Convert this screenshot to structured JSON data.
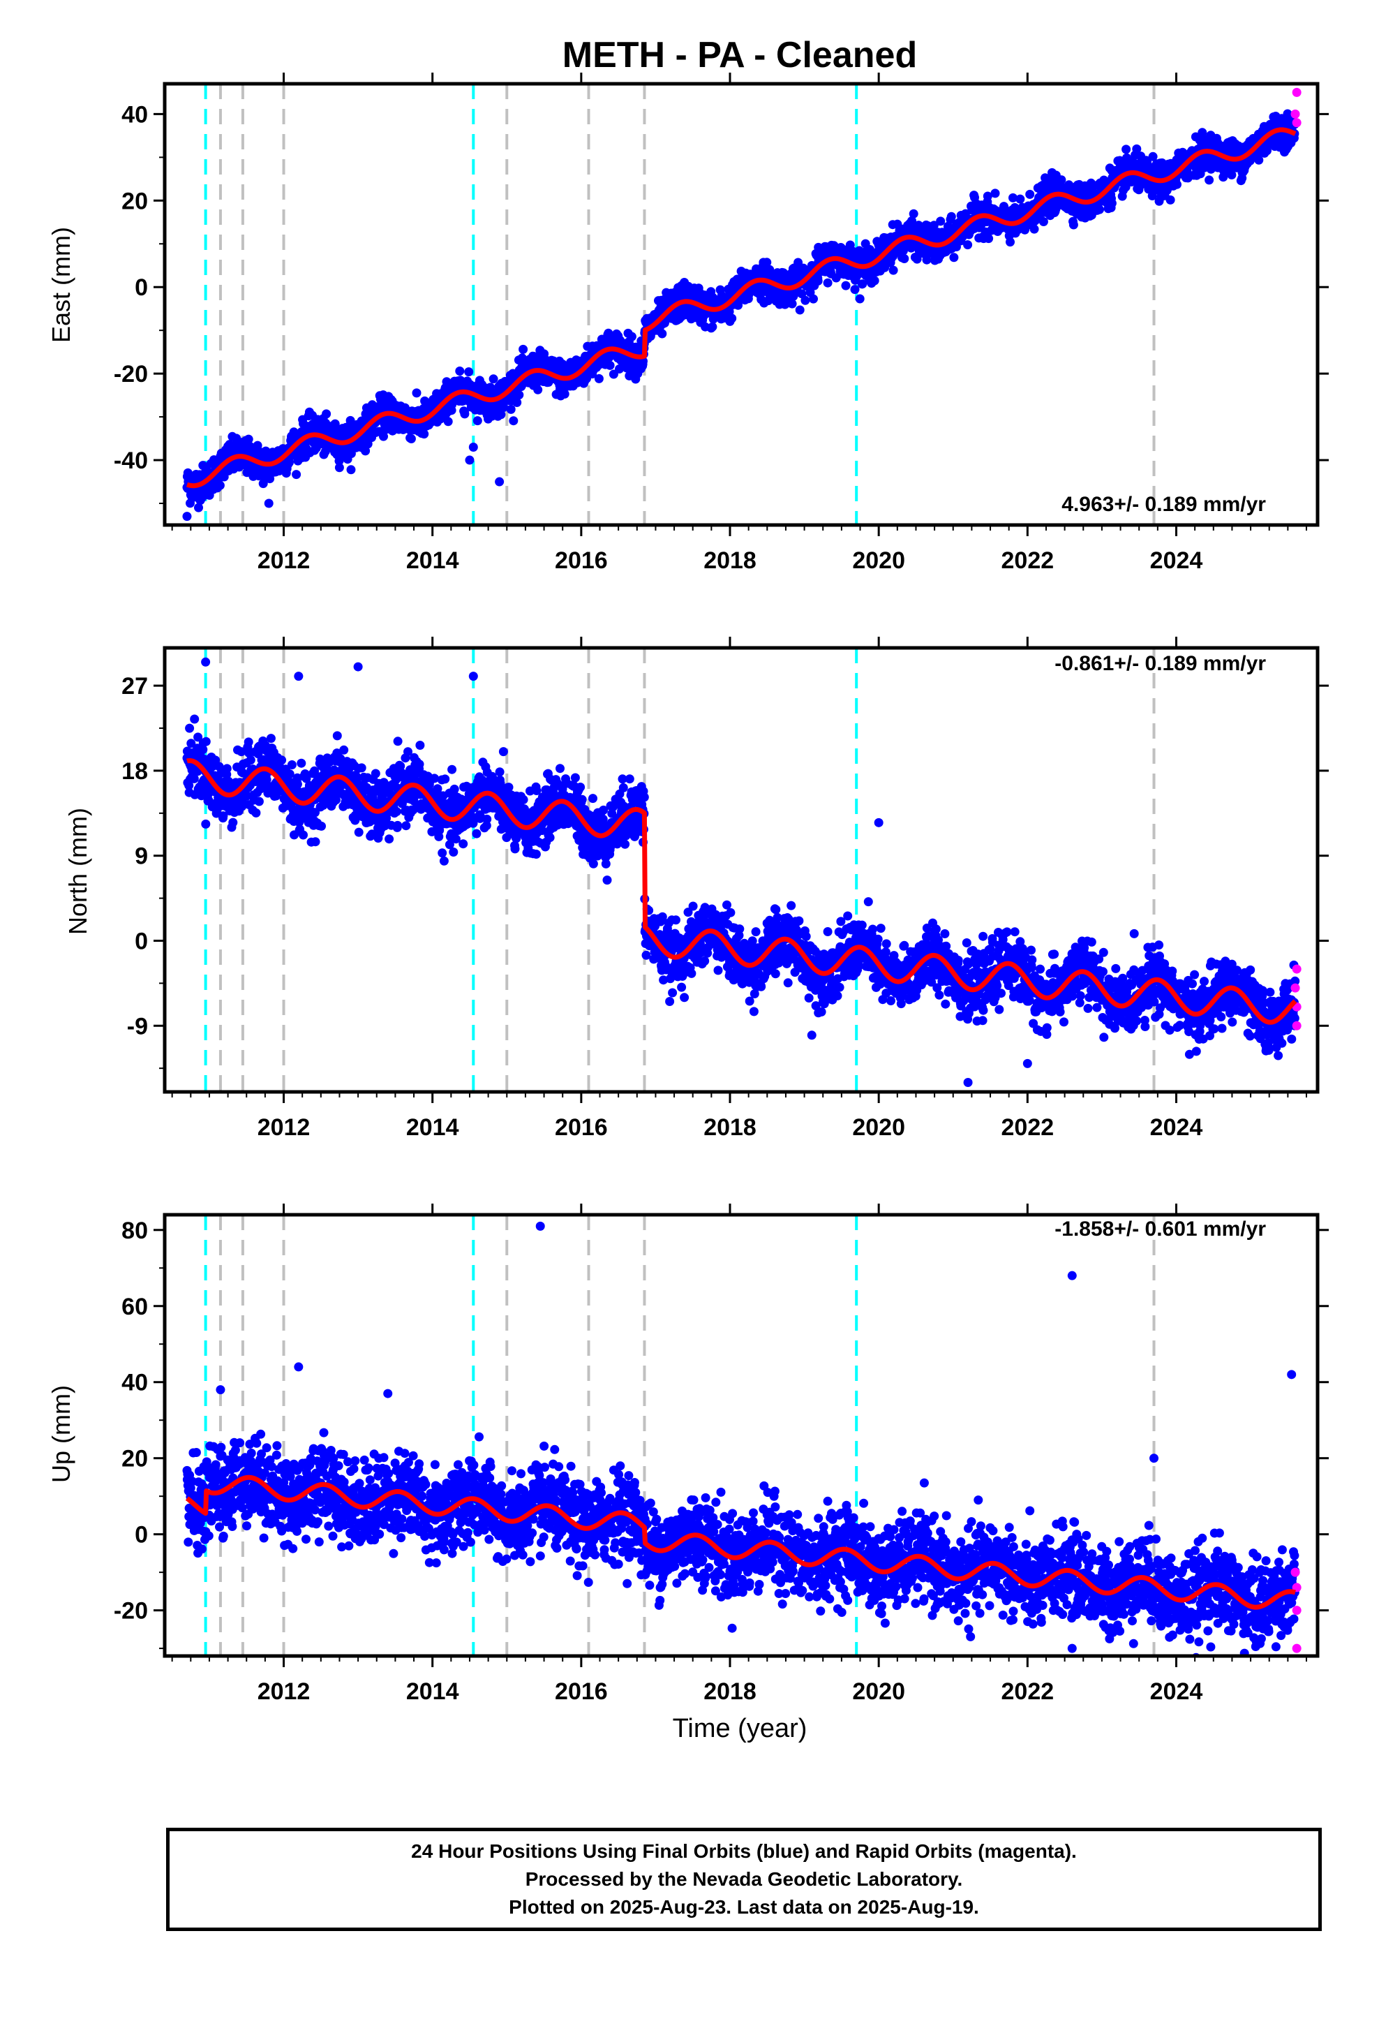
{
  "figure": {
    "title": "METH  - PA - Cleaned",
    "xlabel": "Time (year)",
    "caption": [
      "24 Hour Positions Using Final Orbits (blue) and Rapid Orbits (magenta).",
      "Processed by the Nevada Geodetic Laboratory.",
      "Plotted on 2025-Aug-23. Last data on 2025-Aug-19."
    ],
    "colors": {
      "final_orbits": "#0000ff",
      "rapid_orbits": "#ff00ff",
      "model": "#ff0000",
      "equipment_change": "#00ffff",
      "earthquake": "#c0c0c0"
    }
  },
  "chart_data": [
    {
      "type": "scatter",
      "ylabel": "East (mm)",
      "rate_label": "4.963+/- 0.189 mm/yr",
      "xlim": [
        2010.4,
        2025.9
      ],
      "ylim": [
        -55,
        47
      ],
      "yticks": [
        -40,
        -20,
        0,
        20,
        40
      ],
      "xticks": [
        2012,
        2014,
        2016,
        2018,
        2020,
        2022,
        2024
      ],
      "cyan_lines": [
        2010.95,
        2014.55,
        2019.7
      ],
      "grey_lines": [
        2011.15,
        2011.45,
        2012.0,
        2015.0,
        2016.1,
        2016.85,
        2023.7
      ],
      "model": {
        "start": 2010.7,
        "end": 2025.6,
        "start_value": -44.5,
        "rate": 4.963,
        "annual_amp": 2.0,
        "phase": 0.1,
        "steps": [
          {
            "x": 2016.85,
            "dy": 6.0
          }
        ]
      },
      "scatter_noise": 2.0,
      "outliers": [
        [
          2010.7,
          -53
        ],
        [
          2011.8,
          -50
        ],
        [
          2014.5,
          -40
        ],
        [
          2014.55,
          -37
        ],
        [
          2014.9,
          -45
        ]
      ],
      "rapid": [
        [
          2025.62,
          45
        ],
        [
          2025.62,
          38
        ],
        [
          2025.6,
          40
        ]
      ]
    },
    {
      "type": "scatter",
      "ylabel": "North (mm)",
      "rate_label": "-0.861+/- 0.189 mm/yr",
      "xlim": [
        2010.4,
        2025.9
      ],
      "ylim": [
        -16,
        31
      ],
      "yticks": [
        -9,
        0,
        9,
        18,
        27
      ],
      "xticks": [
        2012,
        2014,
        2016,
        2018,
        2020,
        2022,
        2024
      ],
      "cyan_lines": [
        2010.95,
        2014.55,
        2019.7
      ],
      "grey_lines": [
        2011.15,
        2011.45,
        2012.0,
        2015.0,
        2016.1,
        2016.85,
        2023.7
      ],
      "model": {
        "start": 2010.7,
        "end": 2025.6,
        "start_value": 17.5,
        "rate": -0.861,
        "annual_amp": 1.6,
        "phase": 0.5,
        "steps": [
          {
            "x": 2016.85,
            "dy": -12.0
          }
        ]
      },
      "scatter_noise": 1.6,
      "outliers": [
        [
          2010.95,
          29.5
        ],
        [
          2012.2,
          28.0
        ],
        [
          2013.0,
          29.0
        ],
        [
          2014.55,
          28.0
        ],
        [
          2020.0,
          12.5
        ],
        [
          2021.2,
          -15
        ],
        [
          2022.0,
          -13
        ],
        [
          2019.1,
          -10
        ]
      ],
      "rapid": [
        [
          2025.62,
          -3
        ],
        [
          2025.62,
          -7
        ],
        [
          2025.62,
          -9
        ],
        [
          2025.6,
          -5
        ]
      ]
    },
    {
      "type": "scatter",
      "ylabel": "Up (mm)",
      "rate_label": "-1.858+/- 0.601 mm/yr",
      "xlim": [
        2010.4,
        2025.9
      ],
      "ylim": [
        -32,
        84
      ],
      "yticks": [
        -20,
        0,
        20,
        40,
        60,
        80
      ],
      "xticks": [
        2012,
        2014,
        2016,
        2018,
        2020,
        2022,
        2024
      ],
      "cyan_lines": [
        2010.95,
        2014.55,
        2019.7
      ],
      "grey_lines": [
        2011.15,
        2011.45,
        2012.0,
        2015.0,
        2016.1,
        2016.85,
        2023.7
      ],
      "model": {
        "start": 2010.7,
        "end": 2025.6,
        "start_value": 8.0,
        "rate": -1.858,
        "annual_amp": 2.5,
        "phase": 0.3,
        "steps": [
          {
            "x": 2010.95,
            "dy": 6.0
          },
          {
            "x": 2016.85,
            "dy": -4.0
          }
        ]
      },
      "scatter_noise": 5.5,
      "outliers": [
        [
          2015.45,
          81
        ],
        [
          2022.6,
          68
        ],
        [
          2025.55,
          42
        ],
        [
          2012.2,
          44
        ],
        [
          2011.15,
          38
        ],
        [
          2013.4,
          37
        ],
        [
          2022.6,
          -30
        ],
        [
          2023.7,
          20
        ]
      ],
      "rapid": [
        [
          2025.62,
          -30
        ],
        [
          2025.62,
          -20
        ],
        [
          2025.62,
          -14
        ],
        [
          2025.6,
          -10
        ]
      ]
    }
  ]
}
